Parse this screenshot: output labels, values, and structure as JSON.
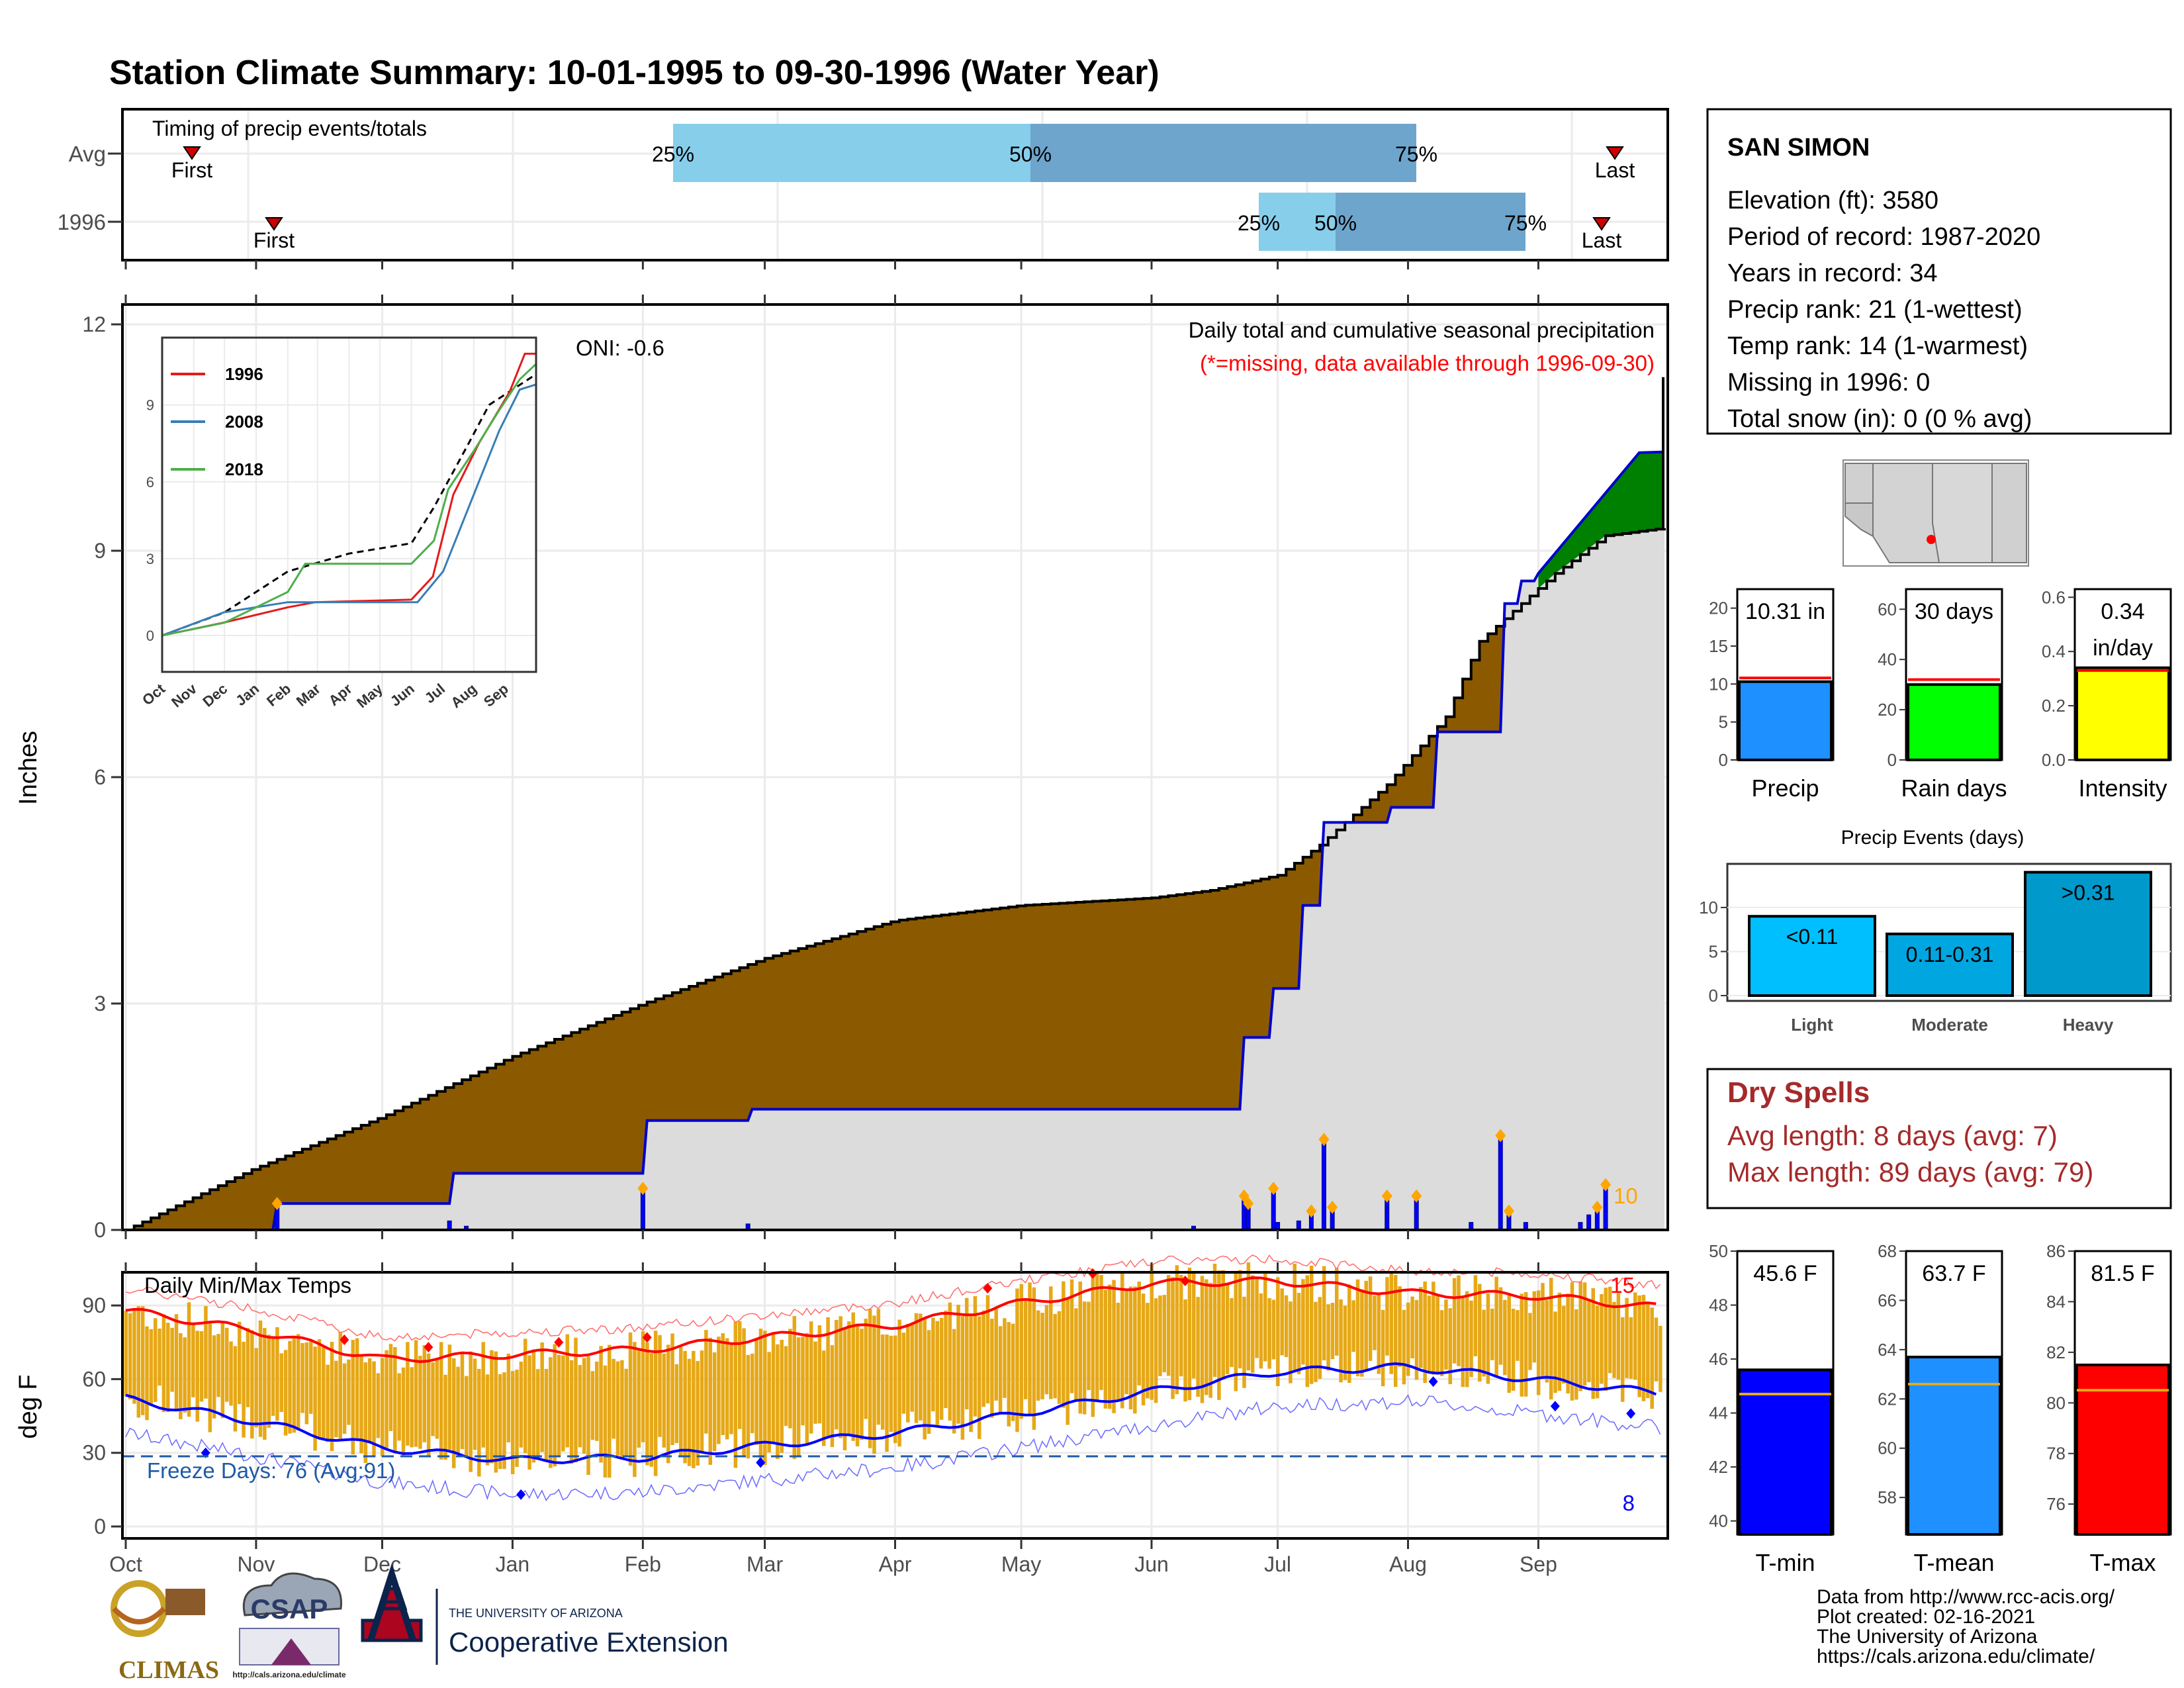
{
  "title": "Station Climate Summary: 10-01-1995 to 09-30-1996 (Water Year)",
  "colors": {
    "title": "#8b1a0a",
    "dry_spells": "#a52a2a",
    "cum_1996": "#8b5a00",
    "cum_avg": "#dcdcdc",
    "surplus": "#008000",
    "daily_bar": "#0000ff",
    "marker_orange": "#ffa500",
    "temp_bar": "#e6a817",
    "tmax_line": "#ff0000",
    "tmin_line": "#0000ff",
    "precip_bar": "#1e90ff",
    "raindays_bar": "#00ff00",
    "intensity_bar": "#ffff00",
    "events_bar_light": "#00bfff",
    "events_bar_mod": "#00a6e0",
    "events_bar_heavy": "#0099cc",
    "tmin_bar": "#0000ff",
    "tmean_bar": "#1e90ff",
    "tmax_bar": "#ff0000"
  },
  "timing": {
    "panel_title": "Timing of precip events/totals",
    "rows": [
      "Avg",
      "1996"
    ],
    "labels": {
      "p25": "25%",
      "p50": "50%",
      "p75": "75%",
      "first": "First",
      "last": "Last"
    }
  },
  "precip_panel": {
    "ylabel": "Inches",
    "yticks": [
      "0",
      "3",
      "6",
      "9",
      "12"
    ],
    "oni": "ONI: -0.6",
    "subtitle": "Daily total and cumulative seasonal precipitation",
    "missing_note": "(*=missing, data available through 1996-09-30)",
    "count_label": "10"
  },
  "inset": {
    "yticks": [
      "0",
      "3",
      "6",
      "9"
    ],
    "months": [
      "Oct",
      "Nov",
      "Dec",
      "Jan",
      "Feb",
      "Mar",
      "Apr",
      "May",
      "Jun",
      "Jul",
      "Aug",
      "Sep"
    ],
    "legend": [
      "1996",
      "2008",
      "2018"
    ]
  },
  "temp_panel": {
    "title": "Daily Min/Max Temps",
    "ylabel": "deg F",
    "yticks": [
      "0",
      "30",
      "60",
      "90"
    ],
    "freeze": "Freeze Days: 76 (Avg:91)",
    "max_count": "15",
    "min_count": "8"
  },
  "months_x": [
    "Oct",
    "Nov",
    "Dec",
    "Jan",
    "Feb",
    "Mar",
    "Apr",
    "May",
    "Jun",
    "Jul",
    "Aug",
    "Sep"
  ],
  "station": {
    "name": "SAN SIMON",
    "lines": [
      "Elevation (ft): 3580",
      "Period of record: 1987-2020",
      "Years in record: 34",
      "Precip rank: 21 (1-wettest)",
      "Temp rank: 14 (1-warmest)",
      "Missing in 1996: 0",
      "Total snow (in): 0 (0 % avg)"
    ]
  },
  "summary_bars": {
    "precip": {
      "label": "Precip",
      "value_text": "10.31 in",
      "yticks": [
        "0",
        "5",
        "10",
        "15",
        "20"
      ]
    },
    "raindays": {
      "label": "Rain days",
      "value_text": "30 days",
      "yticks": [
        "0",
        "20",
        "40",
        "60"
      ]
    },
    "intensity": {
      "label": "Intensity",
      "value_text_1": "0.34",
      "value_text_2": "in/day",
      "yticks": [
        "0.0",
        "0.2",
        "0.4",
        "0.6"
      ]
    }
  },
  "precip_events": {
    "title": "Precip Events (days)",
    "yticks": [
      "0",
      "5",
      "10"
    ],
    "bars": [
      {
        "label": "Light",
        "text": "<0.11"
      },
      {
        "label": "Moderate",
        "text": "0.11-0.31"
      },
      {
        "label": "Heavy",
        "text": ">0.31"
      }
    ]
  },
  "dry_spells": {
    "title": "Dry Spells",
    "avg": "Avg length: 8 days (avg: 7)",
    "max": "Max length: 89 days (avg: 79)"
  },
  "temp_bars": {
    "tmin": {
      "label": "T-min",
      "text": "45.6 F",
      "yticks": [
        "40",
        "42",
        "44",
        "46",
        "48",
        "50"
      ]
    },
    "tmean": {
      "label": "T-mean",
      "text": "63.7 F",
      "yticks": [
        "58",
        "60",
        "62",
        "64",
        "66",
        "68"
      ]
    },
    "tmax": {
      "label": "T-max",
      "text": "81.5 F",
      "yticks": [
        "76",
        "78",
        "80",
        "82",
        "84",
        "86"
      ]
    }
  },
  "footer": {
    "lines": [
      "Data from http://www.rcc-acis.org/",
      "Plot created: 02-16-2021",
      "The University of Arizona",
      "https://cals.arizona.edu/climate/"
    ],
    "climas": "CLIMAS",
    "csap": "CSAP",
    "csap_url": "http://cals.arizona.edu/climate",
    "ua_small": "THE UNIVERSITY OF ARIZONA",
    "ua_big": "Cooperative Extension"
  },
  "chart_data": [
    {
      "type": "area",
      "title": "Daily total and cumulative seasonal precipitation",
      "ylabel": "Inches",
      "ylim": [
        0,
        12
      ],
      "x_unit": "day of water year (0 = Oct 1)",
      "series": [
        {
          "name": "1996",
          "x": [
            0,
            30,
            61,
            92,
            123,
            152,
            183,
            213,
            244,
            258,
            274,
            284,
            300,
            314,
            322,
            330,
            340,
            352,
            366
          ],
          "y": [
            0,
            0.8,
            1.5,
            2.3,
            3.0,
            3.6,
            4.1,
            4.3,
            4.4,
            4.5,
            4.7,
            5.1,
            5.9,
            6.8,
            7.8,
            8.2,
            8.7,
            9.2,
            9.3
          ]
        },
        {
          "name": "avg",
          "x": [
            0,
            35,
            36,
            77,
            78,
            123,
            124,
            148,
            149,
            258,
            265,
            266,
            272,
            273,
            279,
            280,
            284,
            285,
            300,
            301,
            311,
            312,
            327,
            328,
            331,
            332,
            335,
            336,
            360,
            366
          ],
          "y": [
            0,
            0,
            0.35,
            0.35,
            0.75,
            0.75,
            1.45,
            1.45,
            1.6,
            1.6,
            1.6,
            2.55,
            2.55,
            3.2,
            3.2,
            4.3,
            4.3,
            5.4,
            5.4,
            5.6,
            5.6,
            6.6,
            6.6,
            8.3,
            8.3,
            8.6,
            8.6,
            8.7,
            10.3,
            10.31
          ]
        }
      ],
      "daily_bars": [
        {
          "x": 36,
          "y": 0.35
        },
        {
          "x": 77,
          "y": 0.12
        },
        {
          "x": 81,
          "y": 0.05
        },
        {
          "x": 123,
          "y": 0.55
        },
        {
          "x": 148,
          "y": 0.08
        },
        {
          "x": 254,
          "y": 0.05
        },
        {
          "x": 266,
          "y": 0.45
        },
        {
          "x": 267,
          "y": 0.35
        },
        {
          "x": 273,
          "y": 0.55
        },
        {
          "x": 274,
          "y": 0.1
        },
        {
          "x": 279,
          "y": 0.12
        },
        {
          "x": 282,
          "y": 0.25
        },
        {
          "x": 285,
          "y": 1.2
        },
        {
          "x": 287,
          "y": 0.3
        },
        {
          "x": 300,
          "y": 0.45
        },
        {
          "x": 307,
          "y": 0.45
        },
        {
          "x": 320,
          "y": 0.1
        },
        {
          "x": 327,
          "y": 1.25
        },
        {
          "x": 329,
          "y": 0.25
        },
        {
          "x": 333,
          "y": 0.1
        },
        {
          "x": 346,
          "y": 0.1
        },
        {
          "x": 348,
          "y": 0.2
        },
        {
          "x": 350,
          "y": 0.3
        },
        {
          "x": 352,
          "y": 0.6
        }
      ]
    },
    {
      "type": "line",
      "title": "Daily Min/Max Temps",
      "ylabel": "deg F",
      "ylim": [
        0,
        110
      ],
      "series": [
        {
          "name": "Tmax avg",
          "x": [
            0,
            30,
            61,
            92,
            123,
            152,
            183,
            213,
            244,
            274,
            305,
            335,
            366
          ],
          "y": [
            88,
            80,
            68,
            70,
            72,
            77,
            82,
            91,
            99,
            100,
            95,
            94,
            89
          ]
        },
        {
          "name": "Tmin avg",
          "x": [
            0,
            30,
            61,
            92,
            123,
            152,
            183,
            213,
            244,
            274,
            305,
            335,
            366
          ],
          "y": [
            52,
            43,
            32,
            27,
            28,
            33,
            38,
            46,
            55,
            63,
            65,
            60,
            54
          ]
        }
      ],
      "freeze_line": 32
    },
    {
      "type": "bar",
      "title": "Precip Events (days)",
      "categories": [
        "Light",
        "Moderate",
        "Heavy"
      ],
      "values": [
        9,
        7,
        14
      ]
    },
    {
      "type": "bar",
      "categories": [
        "Precip",
        "Rain days",
        "Intensity"
      ],
      "values": [
        10.31,
        30,
        0.34
      ],
      "averages": [
        10.8,
        32,
        0.33
      ]
    },
    {
      "type": "bar",
      "categories": [
        "T-min",
        "T-mean",
        "T-max"
      ],
      "values": [
        45.6,
        63.7,
        81.5
      ],
      "averages": [
        44.7,
        62.6,
        80.5
      ]
    }
  ]
}
